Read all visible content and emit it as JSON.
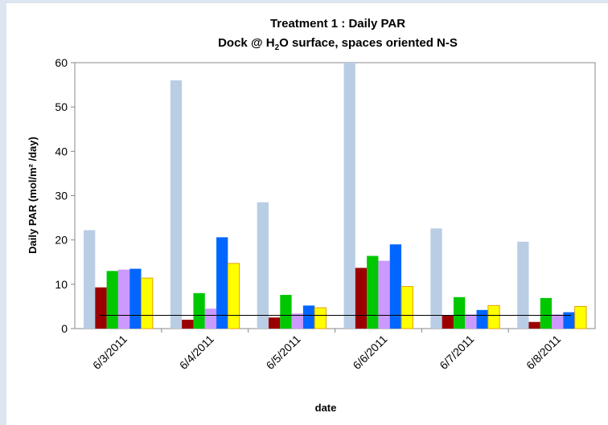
{
  "chart_data": {
    "type": "bar",
    "title": "Treatment 1 : Daily PAR",
    "subtitle": [
      "Dock @ H",
      "2",
      "O surface, spaces oriented N-S"
    ],
    "x_label": "date",
    "y_label": "Daily PAR (mol/m² /day)",
    "categories": [
      "6/3/2011",
      "6/4/2011",
      "6/5/2011",
      "6/6/2011",
      "6/7/2011",
      "6/8/2011"
    ],
    "series": [
      {
        "color": "#b9cde5",
        "values": [
          22.2,
          56,
          28.5,
          60,
          22.6,
          19.6
        ]
      },
      {
        "color": "#9b0000",
        "values": [
          9.3,
          2.0,
          2.5,
          13.7,
          3.0,
          1.5
        ]
      },
      {
        "color": "#00c800",
        "values": [
          13.0,
          8.0,
          7.6,
          16.4,
          7.1,
          6.9
        ]
      },
      {
        "color": "#cc99ff",
        "values": [
          13.3,
          4.5,
          3.4,
          15.3,
          3.2,
          3.2
        ]
      },
      {
        "color": "#0066ff",
        "values": [
          13.5,
          20.6,
          5.2,
          19.0,
          4.2,
          3.7
        ]
      },
      {
        "color": "#ffff00",
        "values": [
          11.4,
          14.7,
          4.7,
          9.5,
          5.2,
          5.0
        ]
      }
    ],
    "reference_line": 3,
    "ylim": [
      0,
      60
    ],
    "yticks": [
      0,
      10,
      20,
      30,
      40,
      50,
      60
    ]
  }
}
